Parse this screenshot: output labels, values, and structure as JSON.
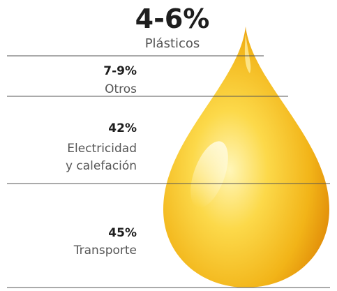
{
  "segments": [
    {
      "value": "4-6%",
      "label": [
        "Plásticos"
      ]
    },
    {
      "value": "7-9%",
      "label": [
        "Otros"
      ]
    },
    {
      "value": "42%",
      "label": [
        "Electricidad",
        "y calefación"
      ]
    },
    {
      "value": "45%",
      "label": [
        "Transporte"
      ]
    }
  ]
}
